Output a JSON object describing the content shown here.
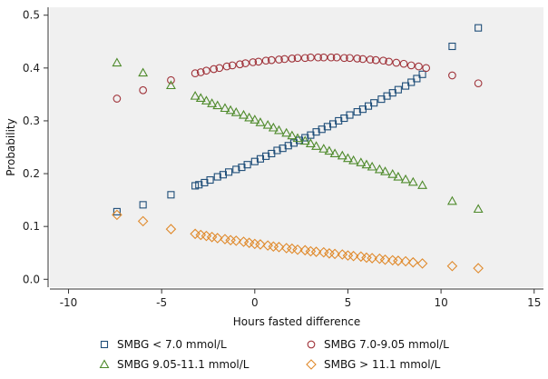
{
  "chart_data": {
    "type": "scatter",
    "title": "",
    "xlabel": "Hours fasted difference",
    "ylabel": "Probability",
    "xlim": [
      -11,
      15.5
    ],
    "ylim": [
      -0.015,
      0.515
    ],
    "x_ticks": [
      "-10",
      "-5",
      "0",
      "5",
      "10",
      "15"
    ],
    "y_ticks": [
      "0.0",
      "0.1",
      "0.2",
      "0.3",
      "0.4",
      "0.5"
    ],
    "grid": false,
    "legend_position": "bottom",
    "series": [
      {
        "name": "SMBG < 7.0 mmol/L",
        "marker": "square",
        "color": "#1f4e79",
        "points": [
          [
            -7.4,
            0.128
          ],
          [
            -6.0,
            0.141
          ],
          [
            -4.5,
            0.16
          ],
          [
            -3.2,
            0.177
          ],
          [
            -3.0,
            0.179
          ],
          [
            -2.7,
            0.183
          ],
          [
            -2.4,
            0.188
          ],
          [
            -2.0,
            0.194
          ],
          [
            -1.7,
            0.198
          ],
          [
            -1.4,
            0.203
          ],
          [
            -1.0,
            0.208
          ],
          [
            -0.7,
            0.212
          ],
          [
            -0.4,
            0.217
          ],
          [
            0.0,
            0.223
          ],
          [
            0.3,
            0.228
          ],
          [
            0.6,
            0.233
          ],
          [
            0.9,
            0.238
          ],
          [
            1.2,
            0.244
          ],
          [
            1.5,
            0.248
          ],
          [
            1.8,
            0.253
          ],
          [
            2.1,
            0.258
          ],
          [
            2.4,
            0.263
          ],
          [
            2.7,
            0.268
          ],
          [
            3.0,
            0.273
          ],
          [
            3.3,
            0.279
          ],
          [
            3.6,
            0.284
          ],
          [
            3.9,
            0.289
          ],
          [
            4.2,
            0.294
          ],
          [
            4.5,
            0.3
          ],
          [
            4.8,
            0.305
          ],
          [
            5.1,
            0.311
          ],
          [
            5.5,
            0.317
          ],
          [
            5.8,
            0.322
          ],
          [
            6.1,
            0.328
          ],
          [
            6.4,
            0.334
          ],
          [
            6.8,
            0.341
          ],
          [
            7.1,
            0.347
          ],
          [
            7.4,
            0.353
          ],
          [
            7.7,
            0.359
          ],
          [
            8.1,
            0.366
          ],
          [
            8.4,
            0.373
          ],
          [
            8.7,
            0.38
          ],
          [
            9.0,
            0.388
          ],
          [
            10.6,
            0.441
          ],
          [
            12.0,
            0.476
          ]
        ]
      },
      {
        "name": "SMBG 7.0-9.05 mmol/L",
        "marker": "circle",
        "color": "#a0333a",
        "points": [
          [
            -7.4,
            0.342
          ],
          [
            -6.0,
            0.358
          ],
          [
            -4.5,
            0.377
          ],
          [
            -3.2,
            0.39
          ],
          [
            -2.9,
            0.392
          ],
          [
            -2.6,
            0.395
          ],
          [
            -2.2,
            0.398
          ],
          [
            -1.9,
            0.4
          ],
          [
            -1.5,
            0.403
          ],
          [
            -1.2,
            0.405
          ],
          [
            -0.8,
            0.407
          ],
          [
            -0.5,
            0.409
          ],
          [
            -0.1,
            0.411
          ],
          [
            0.2,
            0.412
          ],
          [
            0.6,
            0.414
          ],
          [
            0.9,
            0.415
          ],
          [
            1.3,
            0.416
          ],
          [
            1.6,
            0.417
          ],
          [
            2.0,
            0.418
          ],
          [
            2.3,
            0.419
          ],
          [
            2.7,
            0.419
          ],
          [
            3.0,
            0.42
          ],
          [
            3.4,
            0.42
          ],
          [
            3.7,
            0.42
          ],
          [
            4.1,
            0.42
          ],
          [
            4.4,
            0.42
          ],
          [
            4.8,
            0.419
          ],
          [
            5.1,
            0.419
          ],
          [
            5.5,
            0.418
          ],
          [
            5.8,
            0.417
          ],
          [
            6.2,
            0.416
          ],
          [
            6.5,
            0.415
          ],
          [
            6.9,
            0.414
          ],
          [
            7.2,
            0.412
          ],
          [
            7.6,
            0.41
          ],
          [
            8.0,
            0.408
          ],
          [
            8.4,
            0.405
          ],
          [
            8.8,
            0.403
          ],
          [
            9.2,
            0.4
          ],
          [
            10.6,
            0.386
          ],
          [
            12.0,
            0.371
          ]
        ]
      },
      {
        "name": "SMBG 9.05-11.1 mmol/L",
        "marker": "triangle",
        "color": "#4e8a2b",
        "points": [
          [
            -7.4,
            0.41
          ],
          [
            -6.0,
            0.391
          ],
          [
            -4.5,
            0.367
          ],
          [
            -3.2,
            0.347
          ],
          [
            -2.9,
            0.343
          ],
          [
            -2.6,
            0.338
          ],
          [
            -2.3,
            0.333
          ],
          [
            -2.0,
            0.329
          ],
          [
            -1.6,
            0.324
          ],
          [
            -1.3,
            0.32
          ],
          [
            -1.0,
            0.316
          ],
          [
            -0.6,
            0.311
          ],
          [
            -0.3,
            0.306
          ],
          [
            0.0,
            0.302
          ],
          [
            0.3,
            0.297
          ],
          [
            0.7,
            0.292
          ],
          [
            1.0,
            0.287
          ],
          [
            1.3,
            0.282
          ],
          [
            1.7,
            0.277
          ],
          [
            2.0,
            0.272
          ],
          [
            2.3,
            0.267
          ],
          [
            2.7,
            0.262
          ],
          [
            3.0,
            0.257
          ],
          [
            3.3,
            0.252
          ],
          [
            3.7,
            0.247
          ],
          [
            4.0,
            0.243
          ],
          [
            4.3,
            0.238
          ],
          [
            4.7,
            0.234
          ],
          [
            5.0,
            0.229
          ],
          [
            5.3,
            0.225
          ],
          [
            5.7,
            0.221
          ],
          [
            6.0,
            0.217
          ],
          [
            6.3,
            0.213
          ],
          [
            6.7,
            0.208
          ],
          [
            7.0,
            0.204
          ],
          [
            7.4,
            0.199
          ],
          [
            7.7,
            0.194
          ],
          [
            8.1,
            0.189
          ],
          [
            8.5,
            0.184
          ],
          [
            9.0,
            0.178
          ],
          [
            10.6,
            0.148
          ],
          [
            12.0,
            0.133
          ]
        ]
      },
      {
        "name": "SMBG > 11.1 mmol/L",
        "marker": "diamond",
        "color": "#e08a2c",
        "points": [
          [
            -7.4,
            0.122
          ],
          [
            -6.0,
            0.11
          ],
          [
            -4.5,
            0.095
          ],
          [
            -3.2,
            0.086
          ],
          [
            -2.9,
            0.084
          ],
          [
            -2.6,
            0.082
          ],
          [
            -2.3,
            0.08
          ],
          [
            -2.0,
            0.078
          ],
          [
            -1.6,
            0.076
          ],
          [
            -1.3,
            0.074
          ],
          [
            -1.0,
            0.073
          ],
          [
            -0.6,
            0.071
          ],
          [
            -0.3,
            0.069
          ],
          [
            0.0,
            0.067
          ],
          [
            0.3,
            0.066
          ],
          [
            0.7,
            0.064
          ],
          [
            1.0,
            0.062
          ],
          [
            1.3,
            0.061
          ],
          [
            1.7,
            0.059
          ],
          [
            2.0,
            0.058
          ],
          [
            2.3,
            0.056
          ],
          [
            2.7,
            0.055
          ],
          [
            3.0,
            0.053
          ],
          [
            3.3,
            0.052
          ],
          [
            3.7,
            0.051
          ],
          [
            4.0,
            0.049
          ],
          [
            4.3,
            0.048
          ],
          [
            4.7,
            0.047
          ],
          [
            5.0,
            0.045
          ],
          [
            5.3,
            0.044
          ],
          [
            5.7,
            0.043
          ],
          [
            6.0,
            0.041
          ],
          [
            6.3,
            0.04
          ],
          [
            6.7,
            0.039
          ],
          [
            7.0,
            0.037
          ],
          [
            7.4,
            0.036
          ],
          [
            7.7,
            0.035
          ],
          [
            8.1,
            0.034
          ],
          [
            8.5,
            0.032
          ],
          [
            9.0,
            0.03
          ],
          [
            10.6,
            0.025
          ],
          [
            12.0,
            0.021
          ]
        ]
      }
    ]
  }
}
